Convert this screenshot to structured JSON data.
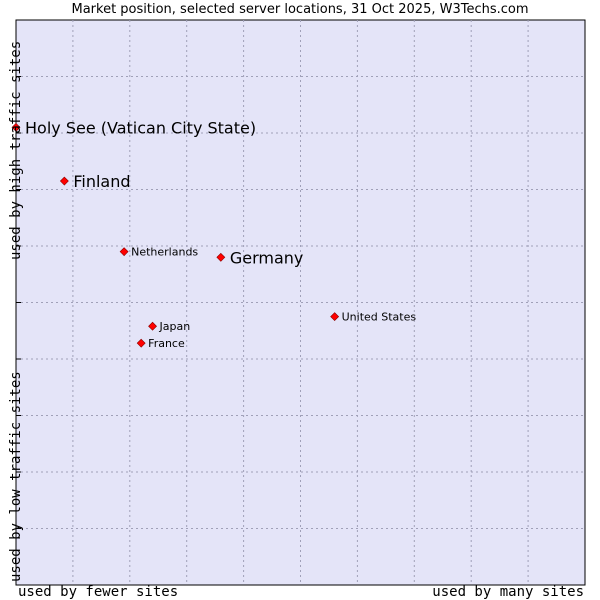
{
  "colors": {
    "plot_background": "#e4e4f8",
    "grid": "#a0a0b8",
    "frame": "#000000",
    "marker": "#ff0000",
    "marker_stroke": "#8a0000"
  },
  "chart_data": {
    "type": "scatter",
    "title": "Market position, selected server locations, 31 Oct 2025, W3Techs.com",
    "xlabel_left": "used by fewer sites",
    "xlabel_right": "used by many sites",
    "ylabel_top": "used by high traffic sites",
    "ylabel_bottom": "used by low traffic sites",
    "xlim": [
      0,
      10
    ],
    "ylim": [
      0,
      10
    ],
    "grid": true,
    "grid_divisions": 10,
    "points": [
      {
        "label": "Holy See (Vatican City State)",
        "x": 0.0,
        "y": 8.1,
        "emphasis": "large"
      },
      {
        "label": "Finland",
        "x": 0.85,
        "y": 7.15,
        "emphasis": "large"
      },
      {
        "label": "Netherlands",
        "x": 1.9,
        "y": 5.9,
        "emphasis": "small"
      },
      {
        "label": "Germany",
        "x": 3.6,
        "y": 5.8,
        "emphasis": "large"
      },
      {
        "label": "United States",
        "x": 5.6,
        "y": 4.75,
        "emphasis": "small"
      },
      {
        "label": "Japan",
        "x": 2.4,
        "y": 4.58,
        "emphasis": "small"
      },
      {
        "label": "France",
        "x": 2.2,
        "y": 4.28,
        "emphasis": "small"
      }
    ]
  }
}
